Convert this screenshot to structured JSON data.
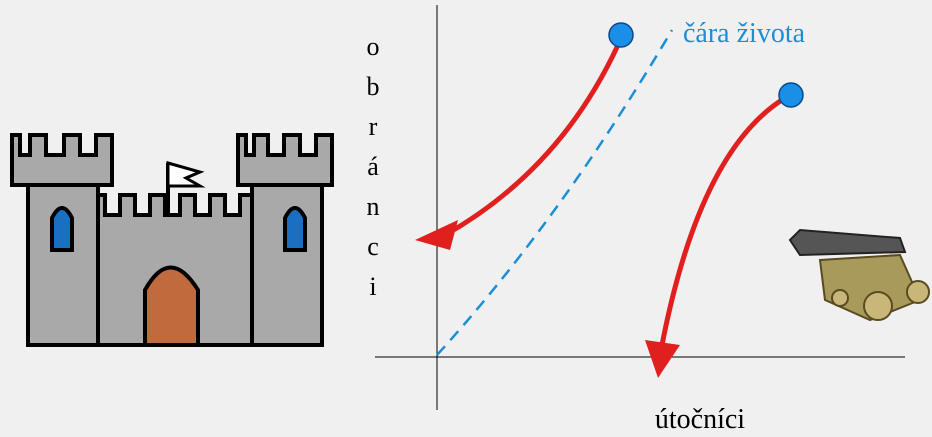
{
  "y_axis_label": "obránci",
  "x_axis_label": "útočníci",
  "line_label": "čára života"
}
